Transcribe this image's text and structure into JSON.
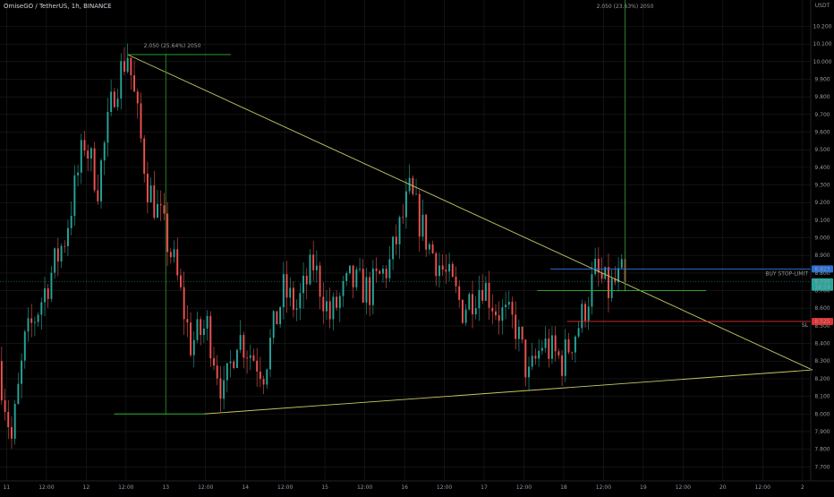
{
  "symbol_title": "OmiseGO / TetherUS, 1h, BINANCE",
  "colors": {
    "background": "#000000",
    "grid": "#1e1e1e",
    "up": "#26a69a",
    "down": "#ef5350",
    "trendline": "#c8c864",
    "measure": "#2e8b2e",
    "target": "#32b432",
    "stop": "#e03030",
    "buy": "#2a6fd1",
    "axis_text": "#9598a1"
  },
  "chart_data": {
    "type": "candlestick",
    "title": "OmiseGO / TetherUS, 1h, BINANCE",
    "ylim": [
      7.62,
      10.35
    ],
    "currency_label": "USDT",
    "y_ticks": [
      7.7,
      7.8,
      7.9,
      8.0,
      8.1,
      8.2,
      8.3,
      8.4,
      8.5,
      8.6,
      8.7,
      8.8,
      8.9,
      9.0,
      9.1,
      9.2,
      9.3,
      9.4,
      9.5,
      9.6,
      9.7,
      9.8,
      9.9,
      10.0,
      10.1,
      10.2
    ],
    "y_tick_labels": [
      "7.700",
      "7.800",
      "7.900",
      "8.000",
      "8.100",
      "8.200",
      "8.300",
      "8.400",
      "8.500",
      "8.600",
      "8.700",
      "8.800",
      "8.900",
      "9.000",
      "9.100",
      "9.200",
      "9.300",
      "9.400",
      "9.500",
      "9.600",
      "9.700",
      "9.800",
      "9.900",
      "10.000",
      "10.100",
      "10.200"
    ],
    "x_ticks": [
      {
        "label": "11",
        "t": 2
      },
      {
        "label": "12:00",
        "t": 14
      },
      {
        "label": "12",
        "t": 26
      },
      {
        "label": "12:00",
        "t": 38
      },
      {
        "label": "13",
        "t": 50
      },
      {
        "label": "12:00",
        "t": 62
      },
      {
        "label": "14",
        "t": 74
      },
      {
        "label": "12:00",
        "t": 86
      },
      {
        "label": "15",
        "t": 98
      },
      {
        "label": "12:00",
        "t": 110
      },
      {
        "label": "16",
        "t": 122
      },
      {
        "label": "12:00",
        "t": 134
      },
      {
        "label": "17",
        "t": 146
      },
      {
        "label": "12:00",
        "t": 158
      },
      {
        "label": "18",
        "t": 170
      },
      {
        "label": "12:00",
        "t": 182
      },
      {
        "label": "19",
        "t": 194
      },
      {
        "label": "12:00",
        "t": 206
      },
      {
        "label": "20",
        "t": 218
      },
      {
        "label": "12:00",
        "t": 230
      },
      {
        "label": "2",
        "t": 242
      }
    ],
    "time_range": [
      0,
      244.5
    ],
    "candle_count": 189,
    "anchors": [
      [
        0,
        8.3
      ],
      [
        4,
        7.85
      ],
      [
        8,
        8.4
      ],
      [
        14,
        8.7
      ],
      [
        20,
        9.0
      ],
      [
        26,
        9.55
      ],
      [
        30,
        9.3
      ],
      [
        35,
        9.85
      ],
      [
        39,
        10.05
      ],
      [
        45,
        9.3
      ],
      [
        49,
        9.1
      ],
      [
        53,
        8.85
      ],
      [
        58,
        8.4
      ],
      [
        63,
        8.5
      ],
      [
        68,
        8.1
      ],
      [
        72,
        8.45
      ],
      [
        76,
        8.35
      ],
      [
        80,
        8.25
      ],
      [
        86,
        8.7
      ],
      [
        90,
        8.6
      ],
      [
        95,
        8.85
      ],
      [
        100,
        8.55
      ],
      [
        106,
        8.75
      ],
      [
        112,
        8.7
      ],
      [
        118,
        8.85
      ],
      [
        124,
        9.25
      ],
      [
        130,
        8.95
      ],
      [
        136,
        8.75
      ],
      [
        140,
        8.6
      ],
      [
        146,
        8.75
      ],
      [
        150,
        8.6
      ],
      [
        156,
        8.5
      ],
      [
        160,
        8.2
      ],
      [
        164,
        8.4
      ],
      [
        170,
        8.3
      ],
      [
        176,
        8.55
      ],
      [
        180,
        8.8
      ],
      [
        184,
        8.7
      ],
      [
        188,
        8.78
      ]
    ],
    "current_price": "8.750",
    "current_countdown": "18:24",
    "annotations": {
      "measure_left_label": "2.050 (25.64%) 2050",
      "measure_right_label": "2.050 (23.63%) 2050",
      "buy_label": "BUY STOP-LIMIT",
      "buy_price": "8.823",
      "sl_label": "SL",
      "sl_price": "8.525"
    },
    "drawings": {
      "upper_trendline": [
        [
          38.5,
          10.04
        ],
        [
          245,
          8.25
        ]
      ],
      "lower_trendline": [
        [
          61.5,
          8.0
        ],
        [
          245,
          8.25
        ]
      ],
      "left_measure": {
        "x0": 38.5,
        "x1": 61.5,
        "vx": 50.0,
        "top": 10.04,
        "bottom": 8.0
      },
      "right_measure": {
        "x": 188.5,
        "top": 10.75,
        "bottom": 8.7,
        "hx0": 162,
        "hx1": 213
      },
      "buy_line": {
        "x0": 166,
        "value": 8.823
      },
      "sl_line": {
        "x0": 171,
        "value": 8.525
      },
      "current_line": {
        "value": 8.75
      }
    }
  }
}
